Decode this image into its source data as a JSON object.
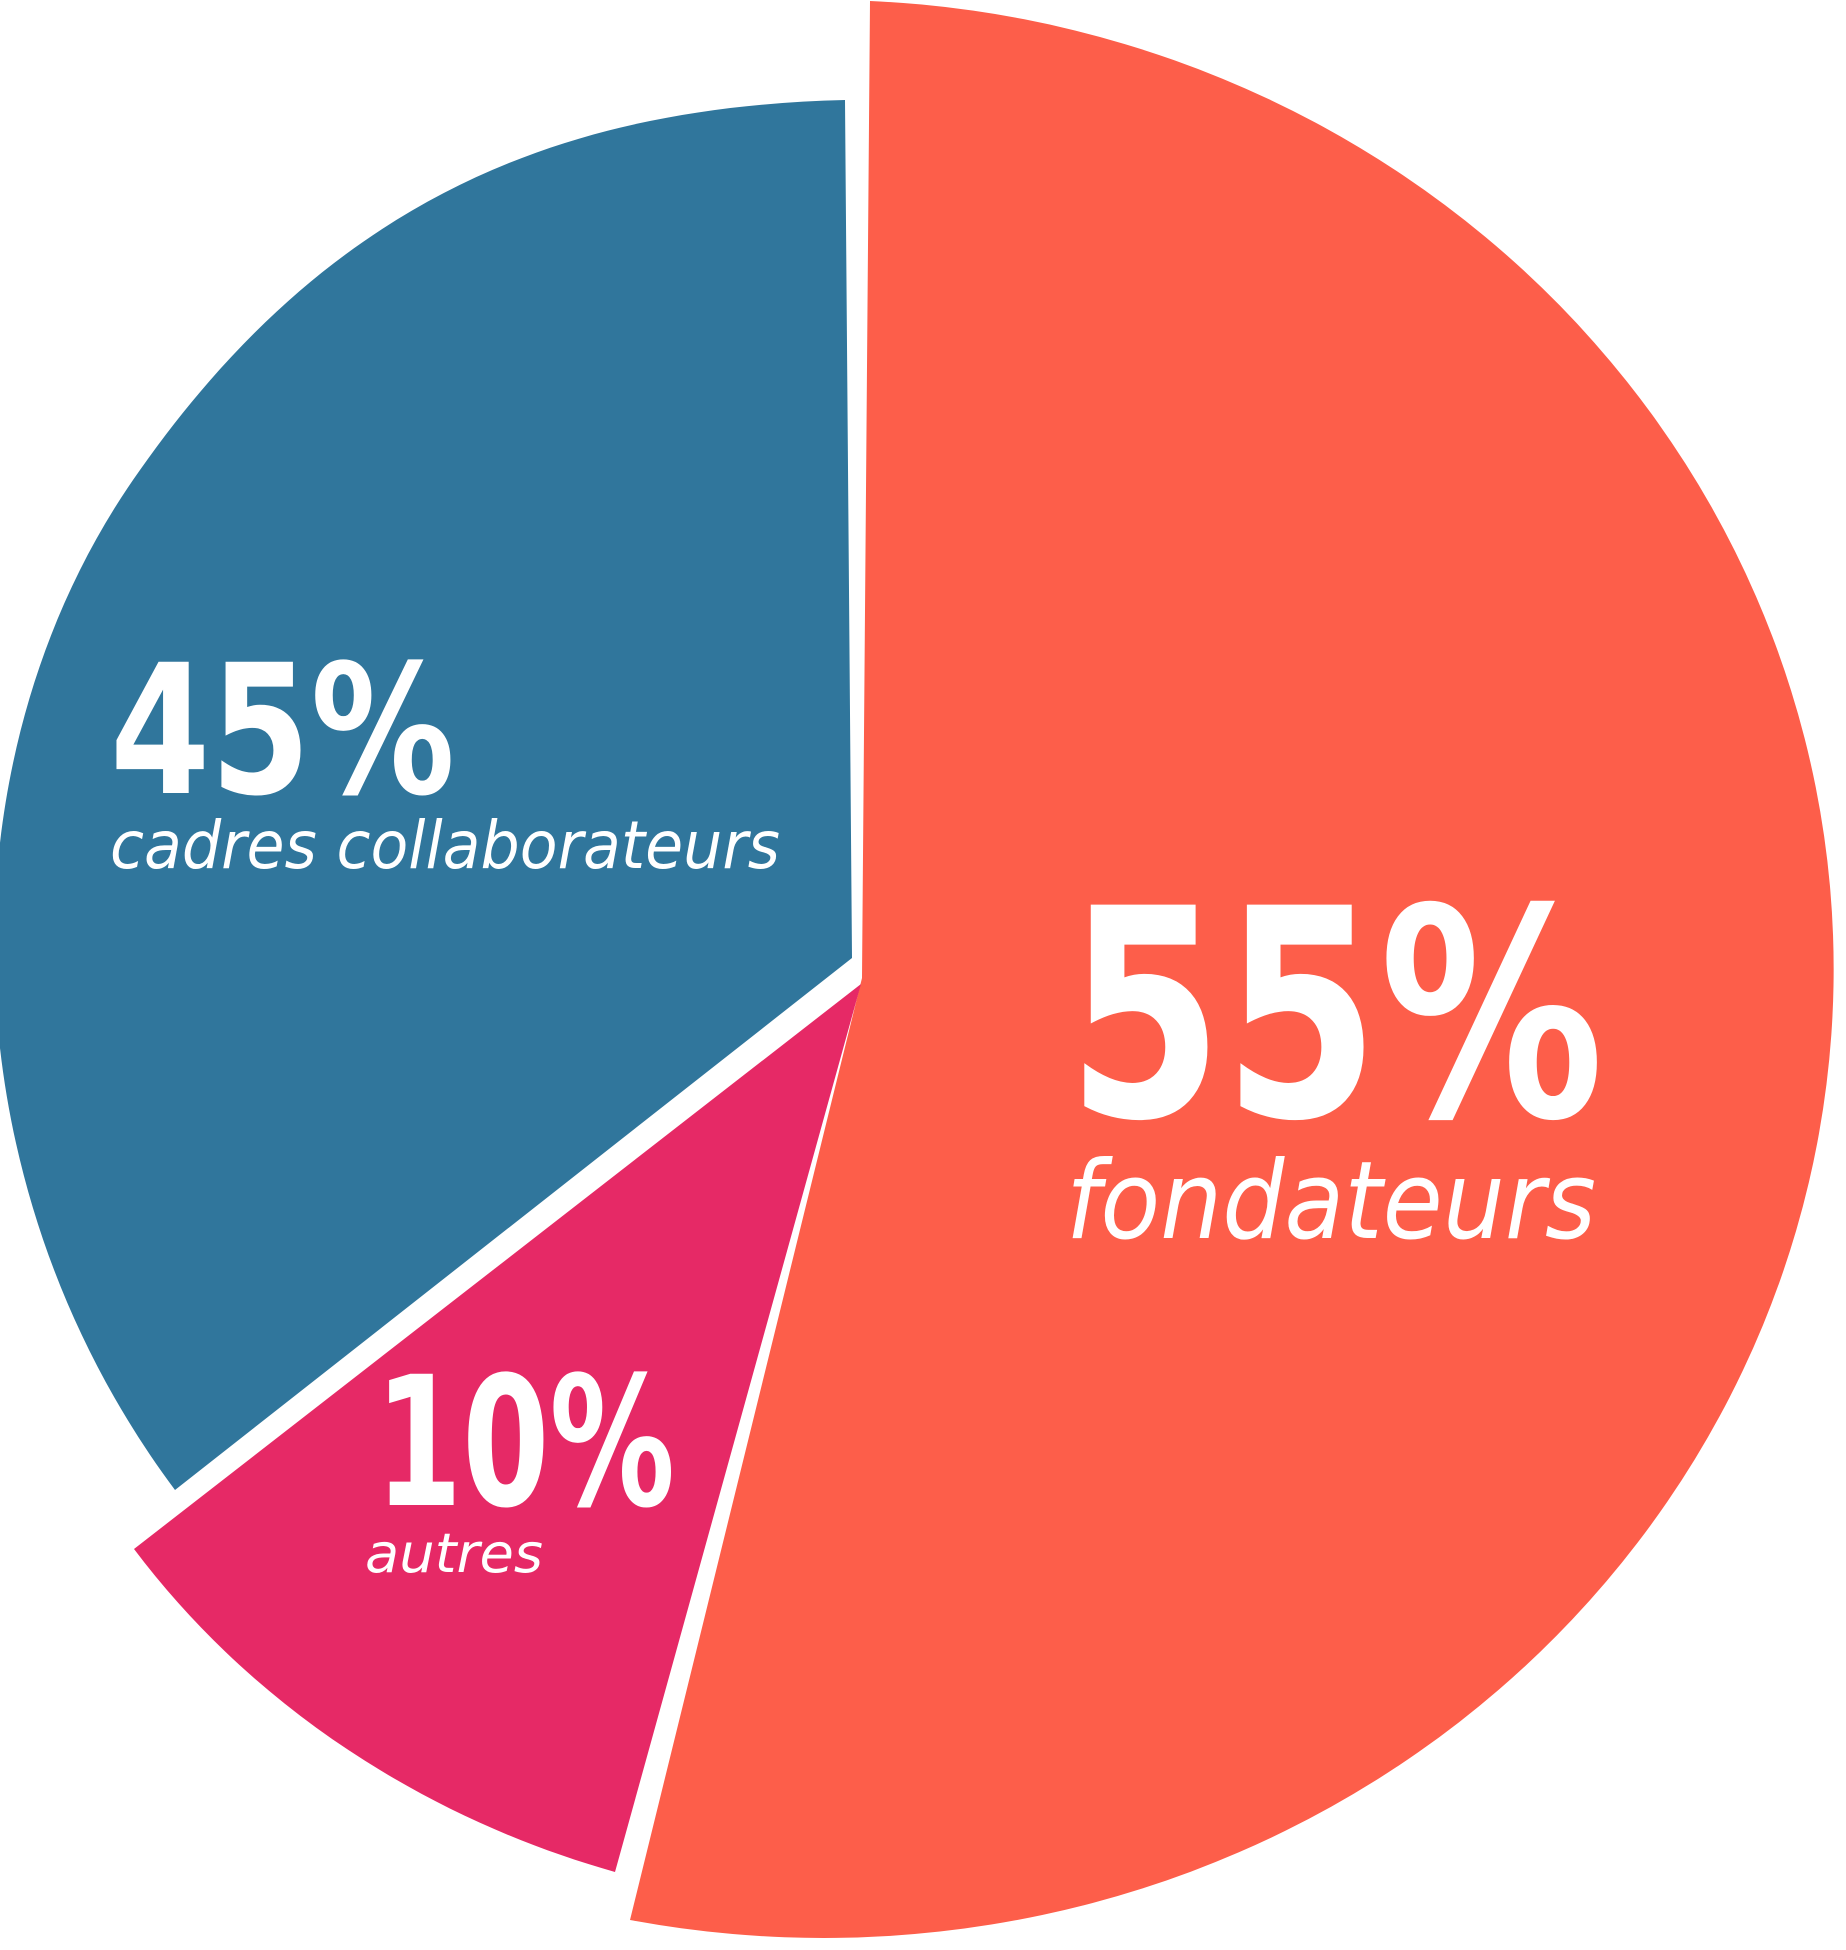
{
  "chart_data": {
    "type": "pie",
    "title": "",
    "slices": [
      {
        "label": "fondateurs",
        "value": 55,
        "value_label": "55%",
        "color": "#fd5e4a"
      },
      {
        "label": "autres",
        "value": 10,
        "value_label": "10%",
        "color": "#e62966"
      },
      {
        "label": "cadres collaborateurs",
        "value": 45,
        "value_label": "45%",
        "color": "#30769c"
      }
    ]
  }
}
